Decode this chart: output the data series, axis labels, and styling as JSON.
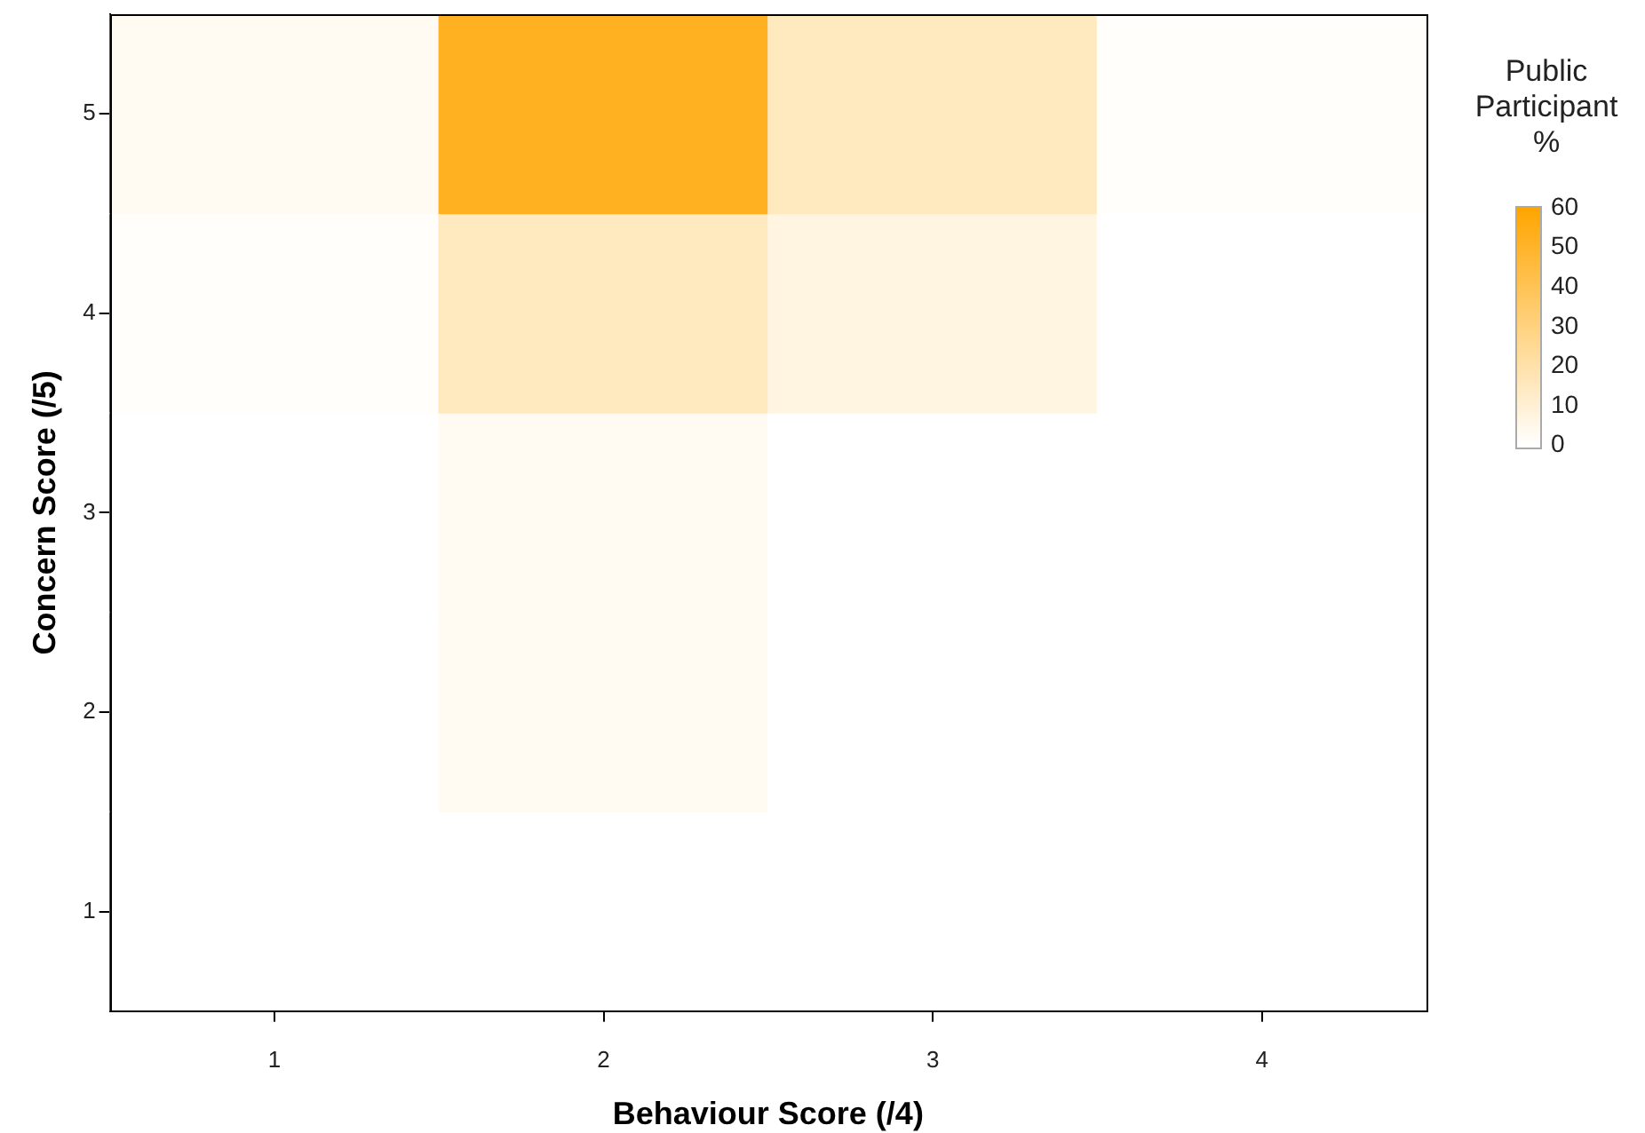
{
  "chart_data": {
    "type": "heatmap",
    "xlabel": "Behaviour Score (/4)",
    "ylabel": "Concern Score (/5)",
    "clabel": "Public Participant %",
    "categories": [
      "1",
      "2",
      "3",
      "4"
    ],
    "y_categories": [
      "5",
      "4",
      "3",
      "2",
      "1"
    ],
    "cells": [
      [
        3,
        52,
        15,
        1
      ],
      [
        1,
        15,
        7,
        0
      ],
      [
        0,
        3,
        0,
        0
      ],
      [
        0,
        3,
        0,
        0
      ],
      [
        0,
        0,
        0,
        0
      ]
    ],
    "color": "#ffa500",
    "clim": [
      0,
      60
    ],
    "cticks": [
      0,
      10,
      20,
      30,
      40,
      50,
      60
    ]
  }
}
